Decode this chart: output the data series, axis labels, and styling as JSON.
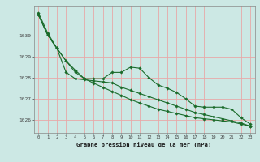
{
  "title": "Graphe pression niveau de la mer (hPa)",
  "bg_color": "#cce8e4",
  "line_color": "#1a6b2a",
  "grid_color": "#e8a8a8",
  "xlim": [
    -0.5,
    23.5
  ],
  "ylim": [
    1025.4,
    1031.4
  ],
  "yticks": [
    1026,
    1027,
    1028,
    1029,
    1030
  ],
  "xticks": [
    0,
    1,
    2,
    3,
    4,
    5,
    6,
    7,
    8,
    9,
    10,
    11,
    12,
    13,
    14,
    15,
    16,
    17,
    18,
    19,
    20,
    21,
    22,
    23
  ],
  "series1_y": [
    1031.1,
    1030.15,
    1029.42,
    1028.82,
    1028.38,
    1027.97,
    1027.76,
    1027.56,
    1027.37,
    1027.18,
    1026.98,
    1026.82,
    1026.67,
    1026.52,
    1026.42,
    1026.32,
    1026.22,
    1026.12,
    1026.07,
    1026.02,
    1025.97,
    1025.92,
    1025.82,
    1025.72
  ],
  "series2_y": [
    1031.0,
    1030.05,
    1029.42,
    1028.82,
    1028.28,
    1027.97,
    1027.97,
    1027.97,
    1028.27,
    1028.27,
    1028.52,
    1028.47,
    1028.02,
    1027.67,
    1027.52,
    1027.32,
    1027.02,
    1026.67,
    1026.62,
    1026.62,
    1026.62,
    1026.52,
    1026.12,
    1025.82
  ],
  "series3_y": [
    1031.0,
    1030.05,
    1029.42,
    1028.28,
    1027.97,
    1027.92,
    1027.87,
    1027.82,
    1027.77,
    1027.57,
    1027.42,
    1027.27,
    1027.12,
    1026.97,
    1026.82,
    1026.67,
    1026.52,
    1026.37,
    1026.27,
    1026.17,
    1026.07,
    1025.97,
    1025.87,
    1025.72
  ]
}
